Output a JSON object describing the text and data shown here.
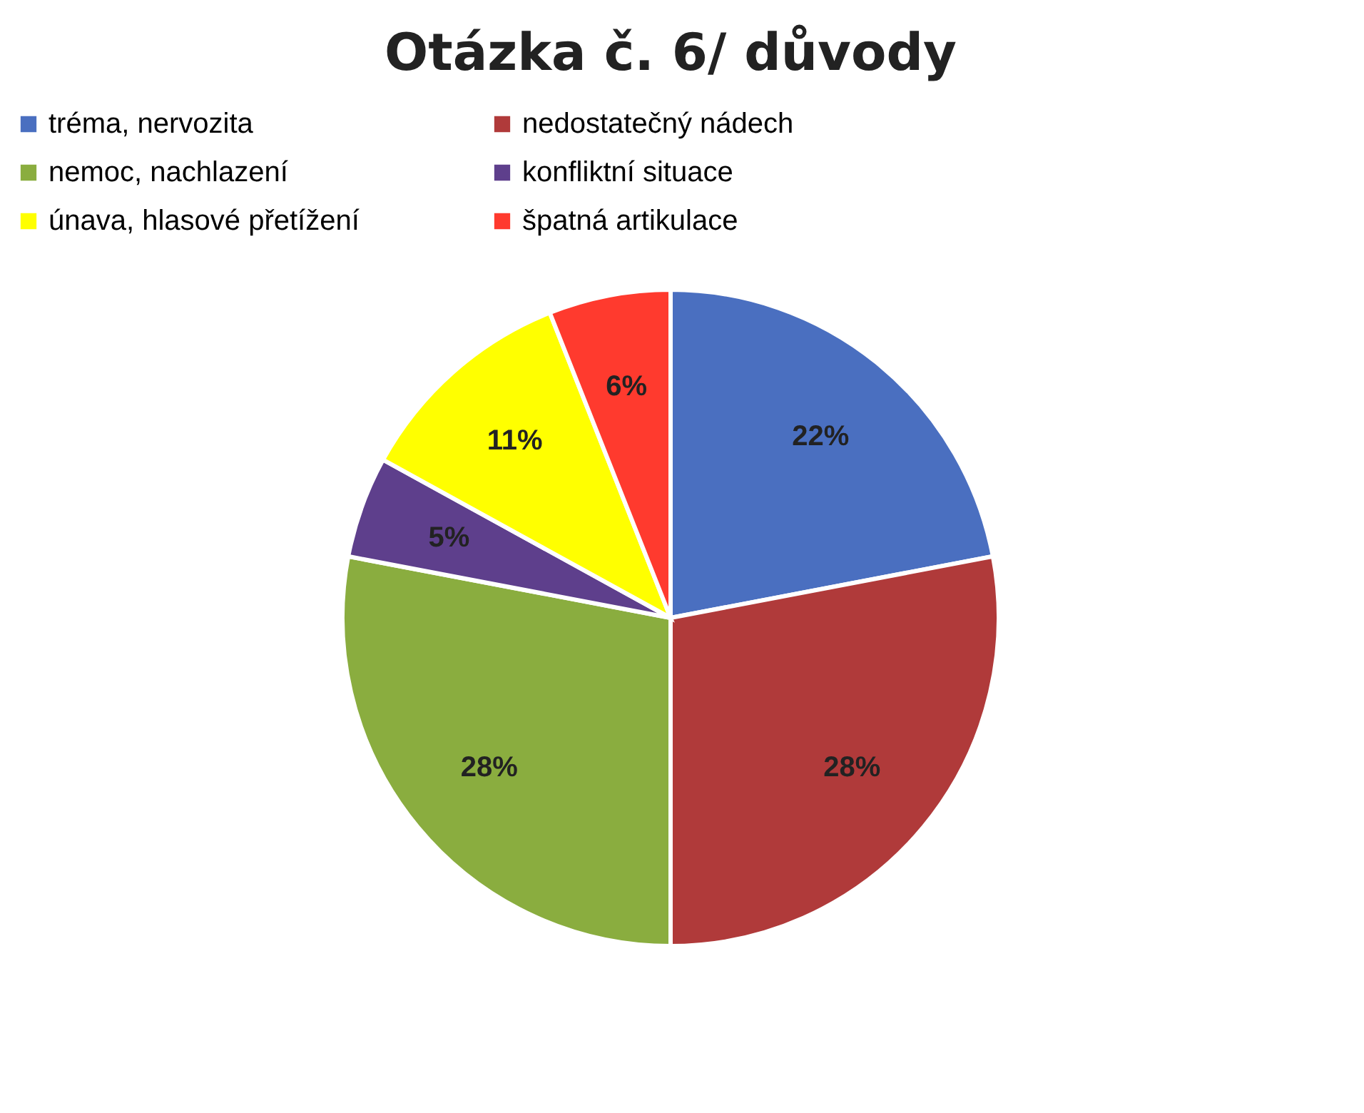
{
  "chart_data": {
    "type": "pie",
    "title": "Otázka č. 6/ důvody",
    "categories": [
      "tréma, nervozita",
      "nedostatečný nádech",
      "nemoc, nachlazení",
      "konfliktní situace",
      "únava, hlasové přetížení",
      "špatná artikulace"
    ],
    "values": [
      22,
      28,
      28,
      5,
      11,
      6
    ],
    "colors": [
      "#4a6fc0",
      "#b03a3a",
      "#8aad3f",
      "#5e3f8c",
      "#ffff00",
      "#ff3a2e"
    ],
    "value_labels": [
      "22%",
      "28%",
      "28%",
      "5%",
      "11%",
      "6%"
    ],
    "legend": "top"
  }
}
